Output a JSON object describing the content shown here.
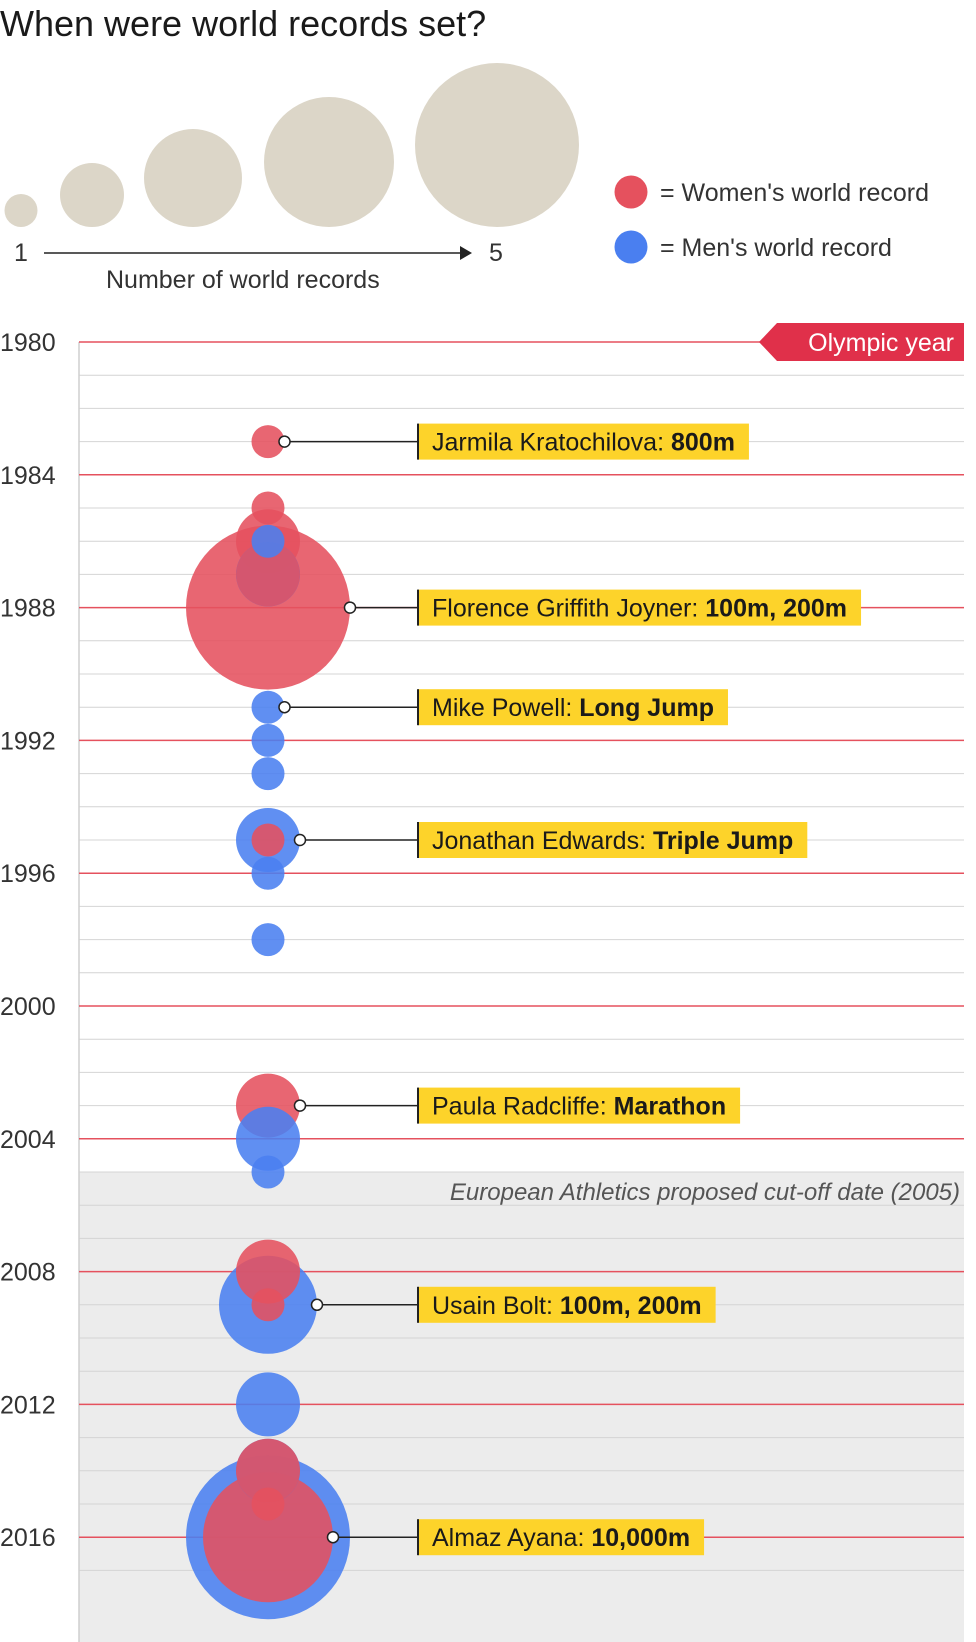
{
  "chart_data": {
    "type": "scatter",
    "title": "When were world records set?",
    "size_legend": {
      "min_label": "1",
      "max_label": "5",
      "axis_label": "Number of world records",
      "values": [
        1,
        2,
        3,
        4,
        5
      ]
    },
    "color_legend": [
      {
        "key": "women",
        "label": "= Women's world record",
        "color": "#e5515e"
      },
      {
        "key": "men",
        "label": "= Men's world record",
        "color": "#4a7ff0"
      }
    ],
    "olympic_label": "Olympic year",
    "olympic_years": [
      1980,
      1984,
      1988,
      1992,
      1996,
      2000,
      2004,
      2008,
      2012,
      2016
    ],
    "year_labels": [
      "1980",
      "1984",
      "1988",
      "1992",
      "1996",
      "2000",
      "2004",
      "2008",
      "2012",
      "2016"
    ],
    "ylim": [
      1980,
      2017.5
    ],
    "cutoff": {
      "year": 2005,
      "label": "European Athletics proposed cut-off date (2005)"
    },
    "records": [
      {
        "year": 1983,
        "gender": "women",
        "count": 1
      },
      {
        "year": 1985,
        "gender": "women",
        "count": 1
      },
      {
        "year": 1986,
        "gender": "women",
        "count": 2
      },
      {
        "year": 1986,
        "gender": "men",
        "count": 1
      },
      {
        "year": 1987,
        "gender": "men",
        "count": 2
      },
      {
        "year": 1988,
        "gender": "women",
        "count": 5
      },
      {
        "year": 1987,
        "gender": "women",
        "count": 2
      },
      {
        "year": 1991,
        "gender": "men",
        "count": 1
      },
      {
        "year": 1992,
        "gender": "men",
        "count": 1
      },
      {
        "year": 1993,
        "gender": "men",
        "count": 1
      },
      {
        "year": 1995,
        "gender": "men",
        "count": 2
      },
      {
        "year": 1995,
        "gender": "women",
        "count": 1
      },
      {
        "year": 1996,
        "gender": "men",
        "count": 1
      },
      {
        "year": 1998,
        "gender": "men",
        "count": 1
      },
      {
        "year": 2003,
        "gender": "women",
        "count": 2
      },
      {
        "year": 2004,
        "gender": "men",
        "count": 2
      },
      {
        "year": 2005,
        "gender": "men",
        "count": 1
      },
      {
        "year": 2008,
        "gender": "women",
        "count": 2
      },
      {
        "year": 2009,
        "gender": "men",
        "count": 3
      },
      {
        "year": 2009,
        "gender": "women",
        "count": 1
      },
      {
        "year": 2012,
        "gender": "men",
        "count": 2
      },
      {
        "year": 2014,
        "gender": "men",
        "count": 2
      },
      {
        "year": 2014,
        "gender": "women",
        "count": 2
      },
      {
        "year": 2015,
        "gender": "women",
        "count": 1
      },
      {
        "year": 2016,
        "gender": "men",
        "count": 5
      },
      {
        "year": 2016,
        "gender": "women",
        "count": 4
      }
    ],
    "annotations": [
      {
        "year": 1983,
        "count": 1,
        "name": "Jarmila Kratochilova:",
        "event": "800m"
      },
      {
        "year": 1988,
        "count": 5,
        "name": "Florence Griffith Joyner:",
        "event": "100m, 200m"
      },
      {
        "year": 1991,
        "count": 1,
        "name": "Mike Powell:",
        "event": "Long Jump"
      },
      {
        "year": 1995,
        "count": 2,
        "name": "Jonathan Edwards:",
        "event": "Triple Jump"
      },
      {
        "year": 2003,
        "count": 2,
        "name": "Paula Radcliffe:",
        "event": "Marathon"
      },
      {
        "year": 2009,
        "count": 3,
        "name": "Usain Bolt:",
        "event": "100m, 200m"
      },
      {
        "year": 2016,
        "count": 4,
        "name": "Almaz Ayana:",
        "event": "10,000m"
      }
    ]
  }
}
